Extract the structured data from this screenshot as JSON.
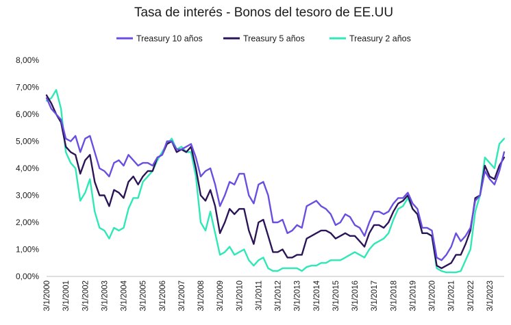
{
  "chart_data": {
    "type": "line",
    "title": "Tasa de interés - Bonos del tesoro de EE.UU",
    "xlabel": "",
    "ylabel": "",
    "y_ticks": [
      "0,00%",
      "1,00%",
      "2,00%",
      "3,00%",
      "4,00%",
      "5,00%",
      "6,00%",
      "7,00%",
      "8,00%"
    ],
    "ylim": [
      0,
      8
    ],
    "x_ticks": [
      "3/1/2000",
      "3/1/2001",
      "3/1/2002",
      "3/1/2003",
      "3/1/2004",
      "3/1/2005",
      "3/1/2006",
      "3/1/2007",
      "3/1/2008",
      "3/1/2009",
      "3/1/2010",
      "3/1/2011",
      "3/1/2012",
      "3/1/2013",
      "3/1/2014",
      "3/1/2015",
      "3/1/2016",
      "3/1/2017",
      "3/1/2018",
      "3/1/2019",
      "3/1/2020",
      "3/1/2021",
      "3/1/2022",
      "3/1/2023"
    ],
    "xlim": [
      2000.0,
      2023.75
    ],
    "grid": false,
    "legend_position": "top",
    "series": [
      {
        "name": "Treasury 10 años",
        "color": "#6a4ee0",
        "x": [
          2000.0,
          2000.25,
          2000.5,
          2000.75,
          2001.0,
          2001.25,
          2001.5,
          2001.75,
          2002.0,
          2002.25,
          2002.5,
          2002.75,
          2003.0,
          2003.25,
          2003.5,
          2003.75,
          2004.0,
          2004.25,
          2004.5,
          2004.75,
          2005.0,
          2005.25,
          2005.5,
          2005.75,
          2006.0,
          2006.25,
          2006.5,
          2006.75,
          2007.0,
          2007.25,
          2007.5,
          2007.75,
          2008.0,
          2008.25,
          2008.5,
          2008.75,
          2009.0,
          2009.25,
          2009.5,
          2009.75,
          2010.0,
          2010.25,
          2010.5,
          2010.75,
          2011.0,
          2011.25,
          2011.5,
          2011.75,
          2012.0,
          2012.25,
          2012.5,
          2012.75,
          2013.0,
          2013.25,
          2013.5,
          2013.75,
          2014.0,
          2014.25,
          2014.5,
          2014.75,
          2015.0,
          2015.25,
          2015.5,
          2015.75,
          2016.0,
          2016.25,
          2016.5,
          2016.75,
          2017.0,
          2017.25,
          2017.5,
          2017.75,
          2018.0,
          2018.25,
          2018.5,
          2018.75,
          2019.0,
          2019.25,
          2019.5,
          2019.75,
          2020.0,
          2020.25,
          2020.5,
          2020.75,
          2021.0,
          2021.25,
          2021.5,
          2021.75,
          2022.0,
          2022.25,
          2022.5,
          2022.75,
          2023.0,
          2023.25,
          2023.5,
          2023.75
        ],
        "y": [
          6.6,
          6.2,
          6.0,
          5.8,
          5.1,
          5.0,
          5.2,
          4.6,
          5.1,
          5.2,
          4.6,
          4.0,
          3.9,
          3.7,
          4.2,
          4.3,
          4.1,
          4.5,
          4.3,
          4.1,
          4.2,
          4.2,
          4.1,
          4.4,
          4.5,
          5.0,
          5.0,
          4.7,
          4.7,
          4.8,
          4.9,
          4.4,
          3.7,
          3.9,
          4.0,
          3.4,
          2.6,
          3.0,
          3.5,
          3.4,
          3.8,
          3.8,
          3.0,
          2.7,
          3.4,
          3.5,
          3.0,
          2.0,
          2.0,
          2.1,
          1.6,
          1.7,
          1.9,
          1.8,
          2.6,
          2.7,
          2.8,
          2.6,
          2.5,
          2.3,
          1.9,
          2.0,
          2.3,
          2.2,
          1.9,
          1.8,
          1.5,
          2.0,
          2.4,
          2.4,
          2.3,
          2.4,
          2.7,
          2.9,
          2.9,
          3.1,
          2.7,
          2.5,
          1.8,
          1.8,
          1.7,
          0.7,
          0.6,
          0.8,
          1.1,
          1.6,
          1.3,
          1.5,
          1.8,
          2.8,
          3.0,
          3.9,
          3.6,
          3.4,
          3.9,
          4.6
        ]
      },
      {
        "name": "Treasury 5 años",
        "color": "#2b1557",
        "x": [
          2000.0,
          2000.25,
          2000.5,
          2000.75,
          2001.0,
          2001.25,
          2001.5,
          2001.75,
          2002.0,
          2002.25,
          2002.5,
          2002.75,
          2003.0,
          2003.25,
          2003.5,
          2003.75,
          2004.0,
          2004.25,
          2004.5,
          2004.75,
          2005.0,
          2005.25,
          2005.5,
          2005.75,
          2006.0,
          2006.25,
          2006.5,
          2006.75,
          2007.0,
          2007.25,
          2007.5,
          2007.75,
          2008.0,
          2008.25,
          2008.5,
          2008.75,
          2009.0,
          2009.25,
          2009.5,
          2009.75,
          2010.0,
          2010.25,
          2010.5,
          2010.75,
          2011.0,
          2011.25,
          2011.5,
          2011.75,
          2012.0,
          2012.25,
          2012.5,
          2012.75,
          2013.0,
          2013.25,
          2013.5,
          2013.75,
          2014.0,
          2014.25,
          2014.5,
          2014.75,
          2015.0,
          2015.25,
          2015.5,
          2015.75,
          2016.0,
          2016.25,
          2016.5,
          2016.75,
          2017.0,
          2017.25,
          2017.5,
          2017.75,
          2018.0,
          2018.25,
          2018.5,
          2018.75,
          2019.0,
          2019.25,
          2019.5,
          2019.75,
          2020.0,
          2020.25,
          2020.5,
          2020.75,
          2021.0,
          2021.25,
          2021.5,
          2021.75,
          2022.0,
          2022.25,
          2022.5,
          2022.75,
          2023.0,
          2023.25,
          2023.5,
          2023.75
        ],
        "y": [
          6.7,
          6.4,
          6.0,
          5.7,
          4.8,
          4.6,
          4.5,
          3.8,
          4.3,
          4.5,
          3.5,
          3.0,
          3.0,
          2.6,
          3.2,
          3.1,
          2.9,
          3.5,
          3.7,
          3.4,
          3.7,
          3.9,
          3.9,
          4.4,
          4.5,
          4.9,
          5.0,
          4.6,
          4.7,
          4.6,
          4.8,
          4.0,
          3.0,
          2.8,
          3.2,
          2.6,
          1.6,
          2.0,
          2.5,
          2.3,
          2.5,
          2.5,
          1.7,
          1.2,
          2.0,
          2.1,
          1.5,
          0.9,
          0.9,
          1.0,
          0.7,
          0.7,
          0.8,
          0.8,
          1.4,
          1.5,
          1.6,
          1.7,
          1.7,
          1.6,
          1.4,
          1.5,
          1.6,
          1.5,
          1.5,
          1.3,
          1.1,
          1.6,
          1.9,
          1.9,
          1.8,
          2.0,
          2.4,
          2.7,
          2.8,
          3.0,
          2.5,
          2.3,
          1.6,
          1.6,
          1.5,
          0.4,
          0.3,
          0.4,
          0.5,
          0.8,
          0.8,
          1.2,
          1.7,
          2.9,
          3.0,
          4.1,
          3.7,
          3.6,
          4.1,
          4.4
        ]
      },
      {
        "name": "Treasury 2 años",
        "color": "#2ee8b6",
        "x": [
          2000.0,
          2000.25,
          2000.5,
          2000.75,
          2001.0,
          2001.25,
          2001.5,
          2001.75,
          2002.0,
          2002.25,
          2002.5,
          2002.75,
          2003.0,
          2003.25,
          2003.5,
          2003.75,
          2004.0,
          2004.25,
          2004.5,
          2004.75,
          2005.0,
          2005.25,
          2005.5,
          2005.75,
          2006.0,
          2006.25,
          2006.5,
          2006.75,
          2007.0,
          2007.25,
          2007.5,
          2007.75,
          2008.0,
          2008.25,
          2008.5,
          2008.75,
          2009.0,
          2009.25,
          2009.5,
          2009.75,
          2010.0,
          2010.25,
          2010.5,
          2010.75,
          2011.0,
          2011.25,
          2011.5,
          2011.75,
          2012.0,
          2012.25,
          2012.5,
          2012.75,
          2013.0,
          2013.25,
          2013.5,
          2013.75,
          2014.0,
          2014.25,
          2014.5,
          2014.75,
          2015.0,
          2015.25,
          2015.5,
          2015.75,
          2016.0,
          2016.25,
          2016.5,
          2016.75,
          2017.0,
          2017.25,
          2017.5,
          2017.75,
          2018.0,
          2018.25,
          2018.5,
          2018.75,
          2019.0,
          2019.25,
          2019.5,
          2019.75,
          2020.0,
          2020.25,
          2020.5,
          2020.75,
          2021.0,
          2021.25,
          2021.5,
          2021.75,
          2022.0,
          2022.25,
          2022.5,
          2022.75,
          2023.0,
          2023.25,
          2023.5,
          2023.75
        ],
        "y": [
          6.5,
          6.6,
          6.9,
          6.2,
          4.6,
          4.2,
          4.0,
          2.8,
          3.1,
          3.6,
          2.4,
          1.8,
          1.7,
          1.4,
          1.8,
          1.7,
          1.8,
          2.5,
          2.9,
          2.9,
          3.5,
          3.7,
          3.9,
          4.3,
          4.6,
          4.9,
          5.1,
          4.7,
          4.8,
          4.6,
          4.6,
          3.7,
          2.0,
          1.7,
          2.4,
          1.6,
          0.8,
          0.9,
          1.1,
          0.8,
          0.9,
          1.0,
          0.6,
          0.4,
          0.6,
          0.7,
          0.3,
          0.2,
          0.2,
          0.3,
          0.3,
          0.3,
          0.3,
          0.2,
          0.35,
          0.4,
          0.4,
          0.5,
          0.5,
          0.6,
          0.6,
          0.6,
          0.7,
          0.8,
          0.9,
          0.8,
          0.7,
          1.0,
          1.2,
          1.3,
          1.4,
          1.6,
          2.1,
          2.5,
          2.6,
          2.9,
          2.5,
          2.3,
          1.6,
          1.6,
          1.5,
          0.3,
          0.2,
          0.15,
          0.15,
          0.15,
          0.2,
          0.6,
          1.0,
          2.4,
          3.0,
          4.4,
          4.2,
          4.0,
          4.9,
          5.1
        ]
      }
    ]
  }
}
